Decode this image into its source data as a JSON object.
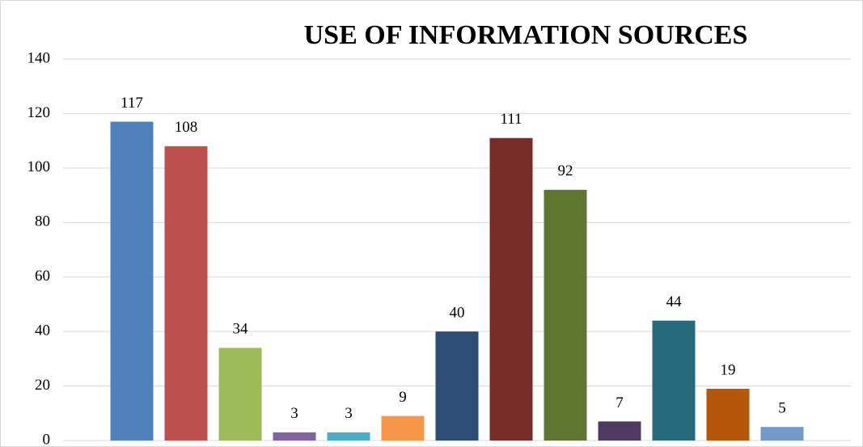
{
  "chart_data": {
    "type": "bar",
    "title": "USE OF INFORMATION SOURCES",
    "categories": [
      null,
      null,
      null,
      null,
      null,
      null,
      null,
      null,
      null,
      null,
      null,
      null,
      null
    ],
    "values": [
      117,
      108,
      34,
      3,
      3,
      9,
      40,
      111,
      92,
      7,
      44,
      19,
      5
    ],
    "colors": [
      "#4f81bd",
      "#c0504d",
      "#9bbb59",
      "#8064a2",
      "#4bacc6",
      "#f79646",
      "#2c4d75",
      "#772c2a",
      "#5f7530",
      "#4d3b62",
      "#276a7c",
      "#b65708",
      "#729aca"
    ],
    "ylim": [
      0,
      140
    ],
    "yticks": [
      0,
      20,
      40,
      60,
      80,
      100,
      120,
      140
    ],
    "grid": true
  }
}
